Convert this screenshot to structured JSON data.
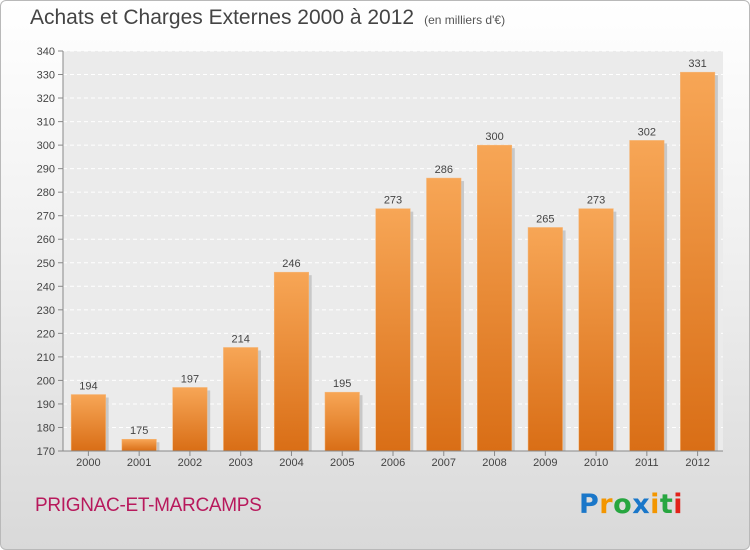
{
  "header": {
    "title": "Achats et Charges Externes 2000 à 2012",
    "subtitle": "(en milliers d'€)"
  },
  "footer": {
    "location": "PRIGNAC-ET-MARCAMPS",
    "logo_text": "Proxiti"
  },
  "colors": {
    "bar_top": "#f7a656",
    "bar_bottom": "#d96e16",
    "text": "#444444",
    "location": "#b8195c"
  },
  "chart_data": {
    "type": "bar",
    "title": "Achats et Charges Externes 2000 à 2012",
    "subtitle": "(en milliers d'€)",
    "categories": [
      "2000",
      "2001",
      "2002",
      "2003",
      "2004",
      "2005",
      "2006",
      "2007",
      "2008",
      "2009",
      "2010",
      "2011",
      "2012"
    ],
    "values": [
      194,
      175,
      197,
      214,
      246,
      195,
      273,
      286,
      300,
      265,
      273,
      302,
      331
    ],
    "ylim": [
      170,
      340
    ],
    "yticks": [
      170,
      180,
      190,
      200,
      210,
      220,
      230,
      240,
      250,
      260,
      270,
      280,
      290,
      300,
      310,
      320,
      330,
      340
    ],
    "grid": true,
    "xlabel": "",
    "ylabel": ""
  }
}
